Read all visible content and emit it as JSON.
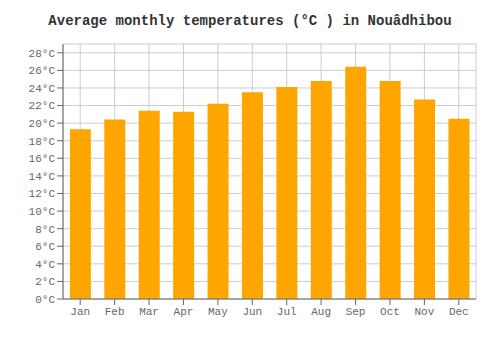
{
  "chart_data": {
    "type": "bar",
    "title": "Average monthly temperatures (°C ) in Nouâdhibou",
    "categories": [
      "Jan",
      "Feb",
      "Mar",
      "Apr",
      "May",
      "Jun",
      "Jul",
      "Aug",
      "Sep",
      "Oct",
      "Nov",
      "Dec"
    ],
    "values": [
      19.3,
      20.4,
      21.4,
      21.3,
      22.2,
      23.5,
      24.1,
      24.8,
      26.4,
      24.8,
      22.7,
      20.5
    ],
    "color": "#FFA500",
    "ylim": [
      0,
      29
    ],
    "yticks": [
      {
        "value": 0,
        "label": "0°C"
      },
      {
        "value": 2,
        "label": "2°C"
      },
      {
        "value": 4,
        "label": "4°C"
      },
      {
        "value": 6,
        "label": "6°C"
      },
      {
        "value": 8,
        "label": "8°C"
      },
      {
        "value": 10,
        "label": "10°C"
      },
      {
        "value": 12,
        "label": "12°C"
      },
      {
        "value": 14,
        "label": "14°C"
      },
      {
        "value": 16,
        "label": "16°C"
      },
      {
        "value": 18,
        "label": "18°C"
      },
      {
        "value": 20,
        "label": "20°C"
      },
      {
        "value": 22,
        "label": "22°C"
      },
      {
        "value": 24,
        "label": "24°C"
      },
      {
        "value": 26,
        "label": "26°C"
      },
      {
        "value": 28,
        "label": "28°C"
      }
    ],
    "grid": true
  }
}
